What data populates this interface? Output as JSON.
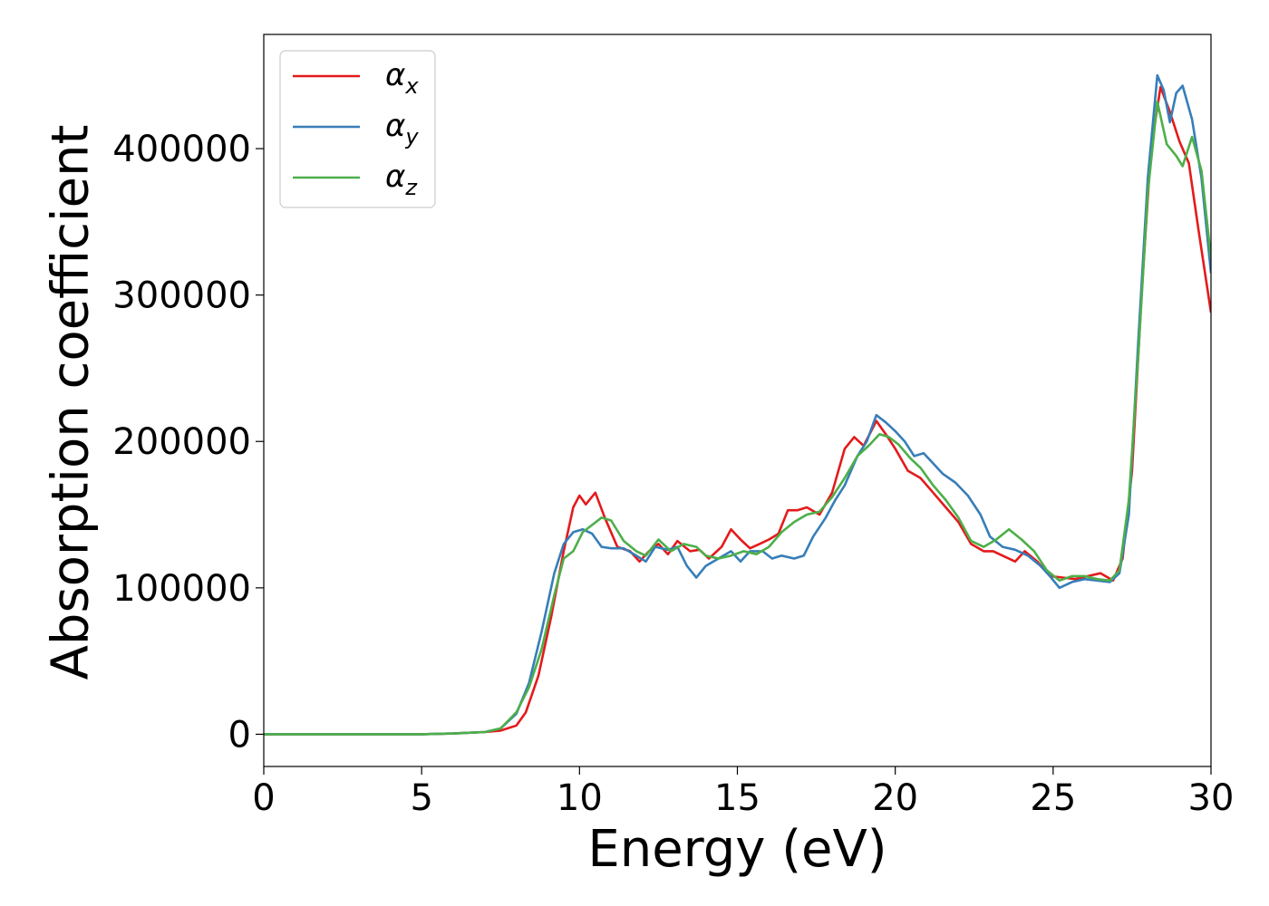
{
  "chart_data": {
    "type": "line",
    "title": "",
    "xlabel": "Energy (eV)",
    "ylabel": "Absorption coefficient",
    "xlim": [
      0,
      30
    ],
    "ylim": [
      -22000,
      478000
    ],
    "x_ticks": [
      0,
      5,
      10,
      15,
      20,
      25,
      30
    ],
    "y_ticks": [
      0,
      100000,
      200000,
      300000,
      400000
    ],
    "grid": false,
    "legend_position": "top-left",
    "series": [
      {
        "name": "αx",
        "label_main": "α",
        "label_sub": "x",
        "color": "#e41a1c",
        "points": [
          [
            0,
            0
          ],
          [
            5,
            0
          ],
          [
            6,
            500
          ],
          [
            7,
            1500
          ],
          [
            7.5,
            2500
          ],
          [
            8,
            6000
          ],
          [
            8.3,
            15000
          ],
          [
            8.7,
            40000
          ],
          [
            9.1,
            80000
          ],
          [
            9.5,
            125000
          ],
          [
            9.8,
            155000
          ],
          [
            10,
            163000
          ],
          [
            10.2,
            157000
          ],
          [
            10.5,
            165000
          ],
          [
            10.8,
            148000
          ],
          [
            11.2,
            128000
          ],
          [
            11.6,
            125000
          ],
          [
            11.9,
            118000
          ],
          [
            12.2,
            125000
          ],
          [
            12.5,
            130000
          ],
          [
            12.8,
            123000
          ],
          [
            13.1,
            132000
          ],
          [
            13.5,
            125000
          ],
          [
            13.8,
            126000
          ],
          [
            14.1,
            120000
          ],
          [
            14.5,
            128000
          ],
          [
            14.8,
            140000
          ],
          [
            15.1,
            133000
          ],
          [
            15.4,
            127000
          ],
          [
            15.7,
            130000
          ],
          [
            16,
            133000
          ],
          [
            16.3,
            137000
          ],
          [
            16.6,
            153000
          ],
          [
            16.9,
            153000
          ],
          [
            17.2,
            155000
          ],
          [
            17.6,
            150000
          ],
          [
            18,
            165000
          ],
          [
            18.4,
            195000
          ],
          [
            18.7,
            203000
          ],
          [
            19,
            197000
          ],
          [
            19.4,
            214000
          ],
          [
            19.7,
            205000
          ],
          [
            20,
            195000
          ],
          [
            20.4,
            180000
          ],
          [
            20.8,
            175000
          ],
          [
            21.2,
            165000
          ],
          [
            21.6,
            155000
          ],
          [
            22,
            145000
          ],
          [
            22.4,
            130000
          ],
          [
            22.8,
            125000
          ],
          [
            23.1,
            125000
          ],
          [
            23.4,
            122000
          ],
          [
            23.8,
            118000
          ],
          [
            24.1,
            125000
          ],
          [
            24.5,
            118000
          ],
          [
            24.9,
            108000
          ],
          [
            25.3,
            107000
          ],
          [
            25.7,
            106000
          ],
          [
            26.1,
            108000
          ],
          [
            26.5,
            110000
          ],
          [
            26.9,
            105000
          ],
          [
            27.2,
            120000
          ],
          [
            27.5,
            180000
          ],
          [
            27.8,
            300000
          ],
          [
            28.1,
            400000
          ],
          [
            28.4,
            442000
          ],
          [
            28.7,
            425000
          ],
          [
            29,
            405000
          ],
          [
            29.3,
            390000
          ],
          [
            29.6,
            345000
          ],
          [
            30,
            288000
          ]
        ]
      },
      {
        "name": "αy",
        "label_main": "α",
        "label_sub": "y",
        "color": "#377eb8",
        "points": [
          [
            0,
            0
          ],
          [
            5,
            0
          ],
          [
            6,
            500
          ],
          [
            7,
            1500
          ],
          [
            7.5,
            4000
          ],
          [
            8,
            14000
          ],
          [
            8.4,
            35000
          ],
          [
            8.8,
            70000
          ],
          [
            9.2,
            110000
          ],
          [
            9.5,
            130000
          ],
          [
            9.8,
            138000
          ],
          [
            10.1,
            140000
          ],
          [
            10.4,
            137000
          ],
          [
            10.7,
            128000
          ],
          [
            11,
            127000
          ],
          [
            11.4,
            127000
          ],
          [
            11.8,
            122000
          ],
          [
            12.1,
            118000
          ],
          [
            12.4,
            128000
          ],
          [
            12.8,
            126000
          ],
          [
            13.1,
            128000
          ],
          [
            13.4,
            115000
          ],
          [
            13.7,
            107000
          ],
          [
            14,
            115000
          ],
          [
            14.4,
            120000
          ],
          [
            14.8,
            125000
          ],
          [
            15.1,
            118000
          ],
          [
            15.4,
            125000
          ],
          [
            15.8,
            125000
          ],
          [
            16.1,
            120000
          ],
          [
            16.4,
            122000
          ],
          [
            16.8,
            120000
          ],
          [
            17.1,
            122000
          ],
          [
            17.4,
            135000
          ],
          [
            17.8,
            148000
          ],
          [
            18.1,
            160000
          ],
          [
            18.4,
            170000
          ],
          [
            18.8,
            190000
          ],
          [
            19.1,
            200000
          ],
          [
            19.4,
            218000
          ],
          [
            19.7,
            213000
          ],
          [
            20,
            207000
          ],
          [
            20.3,
            200000
          ],
          [
            20.6,
            190000
          ],
          [
            20.9,
            192000
          ],
          [
            21.2,
            185000
          ],
          [
            21.5,
            178000
          ],
          [
            21.9,
            172000
          ],
          [
            22.3,
            163000
          ],
          [
            22.7,
            150000
          ],
          [
            23,
            135000
          ],
          [
            23.4,
            128000
          ],
          [
            23.8,
            126000
          ],
          [
            24.2,
            122000
          ],
          [
            24.6,
            115000
          ],
          [
            24.9,
            108000
          ],
          [
            25.2,
            100000
          ],
          [
            25.6,
            104000
          ],
          [
            26,
            106000
          ],
          [
            26.4,
            105000
          ],
          [
            26.8,
            104000
          ],
          [
            27.1,
            110000
          ],
          [
            27.4,
            150000
          ],
          [
            27.7,
            270000
          ],
          [
            28,
            380000
          ],
          [
            28.3,
            450000
          ],
          [
            28.5,
            440000
          ],
          [
            28.7,
            418000
          ],
          [
            28.9,
            438000
          ],
          [
            29.1,
            443000
          ],
          [
            29.4,
            420000
          ],
          [
            29.7,
            380000
          ],
          [
            30,
            315000
          ]
        ]
      },
      {
        "name": "αz",
        "label_main": "α",
        "label_sub": "z",
        "color": "#4daf4a",
        "points": [
          [
            0,
            0
          ],
          [
            5,
            0
          ],
          [
            6,
            500
          ],
          [
            7,
            1500
          ],
          [
            7.5,
            4000
          ],
          [
            8,
            15000
          ],
          [
            8.4,
            32000
          ],
          [
            8.8,
            58000
          ],
          [
            9.2,
            95000
          ],
          [
            9.5,
            120000
          ],
          [
            9.8,
            125000
          ],
          [
            10.1,
            138000
          ],
          [
            10.4,
            143000
          ],
          [
            10.7,
            148000
          ],
          [
            11,
            146000
          ],
          [
            11.4,
            132000
          ],
          [
            11.8,
            125000
          ],
          [
            12.1,
            122000
          ],
          [
            12.5,
            133000
          ],
          [
            12.9,
            125000
          ],
          [
            13.3,
            130000
          ],
          [
            13.7,
            128000
          ],
          [
            14,
            122000
          ],
          [
            14.4,
            120000
          ],
          [
            14.8,
            122000
          ],
          [
            15.2,
            125000
          ],
          [
            15.6,
            123000
          ],
          [
            16,
            128000
          ],
          [
            16.4,
            138000
          ],
          [
            16.8,
            145000
          ],
          [
            17.2,
            150000
          ],
          [
            17.6,
            152000
          ],
          [
            18,
            162000
          ],
          [
            18.4,
            175000
          ],
          [
            18.8,
            190000
          ],
          [
            19.2,
            198000
          ],
          [
            19.5,
            205000
          ],
          [
            19.8,
            203000
          ],
          [
            20.1,
            198000
          ],
          [
            20.5,
            188000
          ],
          [
            20.8,
            182000
          ],
          [
            21.2,
            170000
          ],
          [
            21.6,
            160000
          ],
          [
            22,
            148000
          ],
          [
            22.4,
            132000
          ],
          [
            22.8,
            128000
          ],
          [
            23.2,
            133000
          ],
          [
            23.6,
            140000
          ],
          [
            24,
            133000
          ],
          [
            24.4,
            125000
          ],
          [
            24.8,
            112000
          ],
          [
            25.2,
            105000
          ],
          [
            25.6,
            108000
          ],
          [
            26,
            108000
          ],
          [
            26.4,
            106000
          ],
          [
            26.8,
            105000
          ],
          [
            27.1,
            112000
          ],
          [
            27.4,
            160000
          ],
          [
            27.7,
            260000
          ],
          [
            28,
            370000
          ],
          [
            28.3,
            432000
          ],
          [
            28.6,
            403000
          ],
          [
            28.9,
            395000
          ],
          [
            29.1,
            388000
          ],
          [
            29.4,
            408000
          ],
          [
            29.7,
            385000
          ],
          [
            30,
            325000
          ]
        ]
      }
    ]
  }
}
